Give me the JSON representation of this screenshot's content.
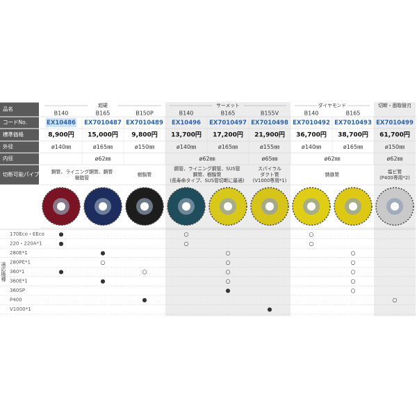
{
  "header": {
    "name": "品名",
    "code": "コードNo.",
    "price": "標準価格",
    "outer": "外径",
    "inner": "内径",
    "pipe": "切断可能パイプ",
    "models": "適応機種"
  },
  "groups": [
    {
      "name": "超硬",
      "products": [
        {
          "sub": "B140",
          "code": "EX10486",
          "price": "8,900円",
          "outer": "ø140㎜"
        },
        {
          "sub": "B165",
          "code": "EX7010487",
          "price": "15,000円",
          "outer": "ø165㎜"
        },
        {
          "sub": "B150P",
          "code": "EX7010489",
          "price": "9,800円",
          "outer": "ø150㎜"
        }
      ]
    },
    {
      "name": "サーメット",
      "products": [
        {
          "sub": "B140",
          "code": "EX10496",
          "price": "13,700円",
          "outer": "ø140㎜"
        },
        {
          "sub": "B165",
          "code": "EX7010497",
          "price": "17,200円",
          "outer": "ø165㎜"
        },
        {
          "sub": "B155V",
          "code": "EX7010498",
          "price": "21,900円",
          "outer": "ø155㎜"
        }
      ]
    },
    {
      "name": "ダイヤモンド",
      "products": [
        {
          "sub": "B140",
          "code": "EX7010492",
          "price": "36,700円",
          "outer": "ø140㎜"
        },
        {
          "sub": "B165",
          "code": "EX7010493",
          "price": "38,700円",
          "outer": "ø165㎜"
        }
      ]
    },
    {
      "name": "切断・面取替刃",
      "products": [
        {
          "sub": null,
          "code": "EX7010499",
          "price": "61,700円",
          "outer": "ø150㎜"
        }
      ]
    }
  ],
  "inner": [
    {
      "text": "ø62㎜",
      "span": 3
    },
    {
      "text": "ø62㎜",
      "span": 2
    },
    {
      "text": "ø65㎜",
      "span": 1
    },
    {
      "text": "ø62㎜",
      "span": 2
    },
    {
      "text": "ø62㎜",
      "span": 1
    }
  ],
  "pipes": [
    {
      "lines": [
        "鋼管、ライニング鋼管、鋼管",
        "樹脂管"
      ],
      "span": 2
    },
    {
      "lines": [
        "樹脂管"
      ],
      "span": 1
    },
    {
      "lines": [
        "鋼管、ライニング鋼管、SUS管",
        "鋼管、樹脂管",
        "(長寿命タイプ、SUS管切断に最適)"
      ],
      "span": 2
    },
    {
      "lines": [
        "スパイラル",
        "ダクト管",
        "(V1000専用*1)"
      ],
      "span": 1
    },
    {
      "lines": [
        "鋳鉄管"
      ],
      "span": 2
    },
    {
      "lines": [
        "塩ビ管",
        "(P400専用*2)"
      ],
      "span": 1
    }
  ],
  "models": [
    {
      "name": "170Eco・EEco",
      "marks": [
        "●",
        null,
        null,
        "○",
        null,
        null,
        "○",
        null,
        null
      ]
    },
    {
      "name": "220・220A*1",
      "marks": [
        "●",
        null,
        null,
        "○",
        null,
        null,
        "○",
        null,
        null
      ]
    },
    {
      "name": "280E*1",
      "marks": [
        null,
        "●",
        null,
        null,
        "○",
        null,
        null,
        "○",
        null
      ]
    },
    {
      "name": "280PE*1",
      "marks": [
        null,
        "○",
        null,
        null,
        "○",
        null,
        null,
        "○",
        null
      ]
    },
    {
      "name": "360*1",
      "marks": [
        "●",
        null,
        "○",
        null,
        "○",
        null,
        null,
        "○",
        null
      ]
    },
    {
      "name": "360E*1",
      "marks": [
        null,
        "●",
        null,
        null,
        "○",
        null,
        null,
        "○",
        null
      ]
    },
    {
      "name": "360SP",
      "marks": [
        null,
        null,
        null,
        null,
        "●",
        null,
        null,
        "○",
        null
      ]
    },
    {
      "name": "P400",
      "marks": [
        null,
        null,
        "●",
        null,
        null,
        null,
        null,
        null,
        "○"
      ]
    },
    {
      "name": "V1000*1",
      "marks": [
        null,
        null,
        null,
        null,
        null,
        "●",
        null,
        null,
        null
      ]
    }
  ]
}
